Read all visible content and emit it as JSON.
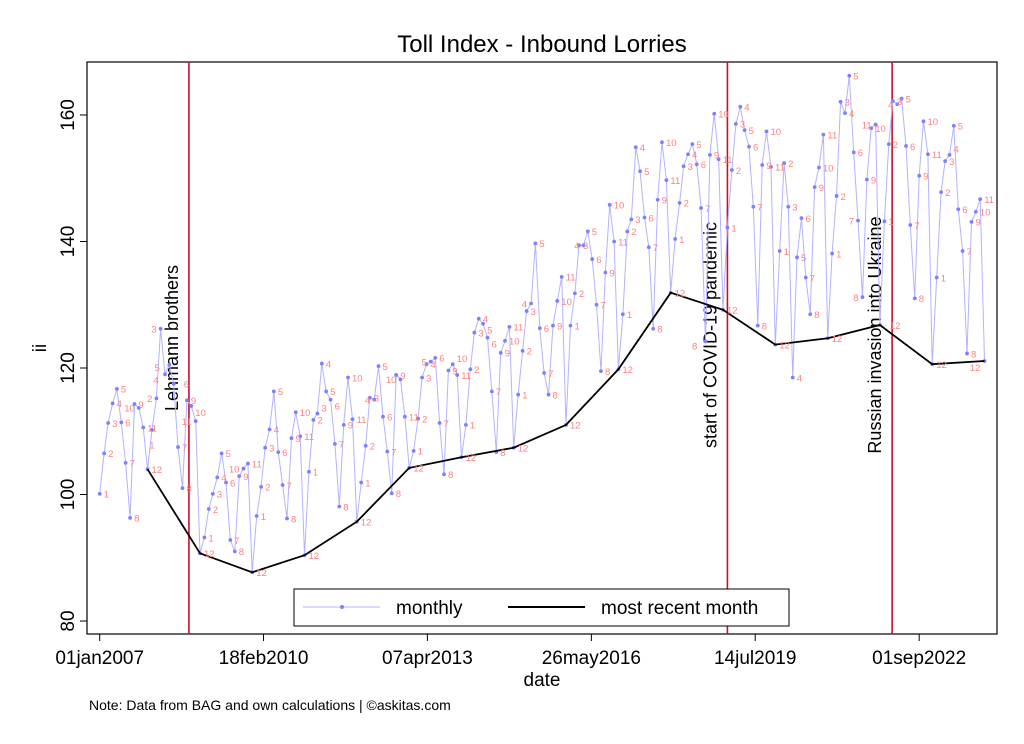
{
  "chart_data": {
    "type": "line",
    "title": "Toll Index - Inbound Lorries",
    "xlabel": "date",
    "ylabel": "ii",
    "note": "Note: Data from BAG and own calculations | ©askitas.com",
    "xlim": [
      "2006-10-01",
      "2024-04-15"
    ],
    "ylim": [
      78,
      168
    ],
    "xticks": [
      {
        "date": "2007-01-01",
        "label": "01jan2007"
      },
      {
        "date": "2010-02-18",
        "label": "18feb2010"
      },
      {
        "date": "2013-04-07",
        "label": "07apr2013"
      },
      {
        "date": "2016-05-26",
        "label": "26may2016"
      },
      {
        "date": "2019-07-14",
        "label": "14jul2019"
      },
      {
        "date": "2022-09-01",
        "label": "01sep2022"
      }
    ],
    "yticks": [
      80,
      100,
      120,
      140,
      160
    ],
    "grid": false,
    "legend": {
      "placement": "bottom",
      "entries": [
        "monthly",
        "most recent month"
      ]
    },
    "colors": {
      "monthly_line": "#b3b3ff",
      "monthly_marker": "#7f7fff",
      "month_label": "#ff8080",
      "recent_line": "#000000",
      "event_line": "#c8102e"
    },
    "events": [
      {
        "date": "2008-09-15",
        "label": "Lehmann brothers"
      },
      {
        "date": "2019-01-01",
        "label": "start of COVID-19 pandemic"
      },
      {
        "date": "2022-02-24",
        "label": "Russian invasion into Ukraine"
      }
    ],
    "series": [
      {
        "name": "monthly",
        "years": [
          {
            "year": 2007,
            "values": [
              100.1,
              106.5,
              111.3,
              114.4,
              116.7,
              111.4,
              105.0,
              96.3,
              114.3,
              113.7,
              110.6,
              104.0
            ]
          },
          {
            "year": 2008,
            "values": [
              110.2,
              115.2,
              126.2,
              119.0,
              120.5,
              117.5,
              107.5,
              101.0,
              114.9,
              114.0,
              111.6,
              90.7
            ]
          },
          {
            "year": 2009,
            "values": [
              93.2,
              97.7,
              100.1,
              102.7,
              106.5,
              101.9,
              92.8,
              91.0,
              102.9,
              104.1,
              104.9,
              87.7
            ]
          },
          {
            "year": 2010,
            "values": [
              96.6,
              101.2,
              107.4,
              110.3,
              116.3,
              106.7,
              101.5,
              96.2,
              108.9,
              113.0,
              109.2,
              90.4
            ]
          },
          {
            "year": 2011,
            "values": [
              103.6,
              111.8,
              112.8,
              120.7,
              116.3,
              115.0,
              108.0,
              98.1,
              111.0,
              118.5,
              111.9,
              95.7
            ]
          },
          {
            "year": 2012,
            "values": [
              101.9,
              107.7,
              115.3,
              115.0,
              120.3,
              112.3,
              106.8,
              100.2,
              118.9,
              118.2,
              112.3,
              104.2
            ]
          },
          {
            "year": 2013,
            "values": [
              106.9,
              112.0,
              118.5,
              120.6,
              121.0,
              121.6,
              111.3,
              103.2,
              119.6,
              120.6,
              118.9,
              105.9
            ]
          },
          {
            "year": 2014,
            "values": [
              111.0,
              119.8,
              125.6,
              127.8,
              127.0,
              124.8,
              116.3,
              106.7,
              122.4,
              124.3,
              126.5,
              107.4
            ]
          },
          {
            "year": 2015,
            "values": [
              115.8,
              122.7,
              129.0,
              130.2,
              139.7,
              126.3,
              119.2,
              115.8,
              126.7,
              130.6,
              134.4,
              111.0
            ]
          },
          {
            "year": 2016,
            "values": [
              126.7,
              131.8,
              139.4,
              139.4,
              141.6,
              137.2,
              130.0,
              119.5,
              135.1,
              145.8,
              140.0,
              119.8
            ]
          },
          {
            "year": 2017,
            "values": [
              128.5,
              141.6,
              143.5,
              154.9,
              151.1,
              143.8,
              139.1,
              126.2,
              146.6,
              155.7,
              149.7,
              131.9
            ]
          },
          {
            "year": 2018,
            "values": [
              140.4,
              146.1,
              151.9,
              153.8,
              155.4,
              152.2,
              145.3,
              124.2,
              153.7,
              160.2,
              153.0,
              129.2
            ]
          },
          {
            "year": 2019,
            "values": [
              142.2,
              151.3,
              158.6,
              161.3,
              157.6,
              155.0,
              145.5,
              126.7,
              152.1,
              157.4,
              151.8,
              123.7
            ]
          },
          {
            "year": 2020,
            "values": [
              138.5,
              152.4,
              145.5,
              118.5,
              137.5,
              143.7,
              134.3,
              128.5,
              148.6,
              151.7,
              156.9,
              124.7
            ]
          },
          {
            "year": 2021,
            "values": [
              138.1,
              147.2,
              162.1,
              160.3,
              166.2,
              154.1,
              143.3,
              131.2,
              149.8,
              157.9,
              158.5,
              126.8
            ]
          },
          {
            "year": 2022,
            "values": [
              143.2,
              155.4,
              162.2,
              161.7,
              162.6,
              155.1,
              142.6,
              131.0,
              150.4,
              159.0,
              153.8,
              120.6
            ]
          },
          {
            "year": 2023,
            "values": [
              134.3,
              147.8,
              152.7,
              153.7,
              158.3,
              145.1,
              138.5,
              122.3,
              143.1,
              144.7,
              146.7,
              121.1
            ]
          }
        ]
      },
      {
        "name": "most recent month",
        "x": [
          "2007-12",
          "2008-12",
          "2009-12",
          "2010-12",
          "2011-12",
          "2012-12",
          "2013-12",
          "2014-12",
          "2015-12",
          "2016-12",
          "2017-12",
          "2018-12",
          "2019-12",
          "2020-12",
          "2021-12",
          "2022-12",
          "2023-12"
        ],
        "values": [
          104.0,
          90.7,
          87.7,
          90.4,
          95.7,
          104.2,
          105.9,
          107.4,
          111.0,
          119.8,
          131.9,
          129.2,
          123.7,
          124.7,
          126.8,
          120.6,
          121.1
        ]
      }
    ]
  }
}
